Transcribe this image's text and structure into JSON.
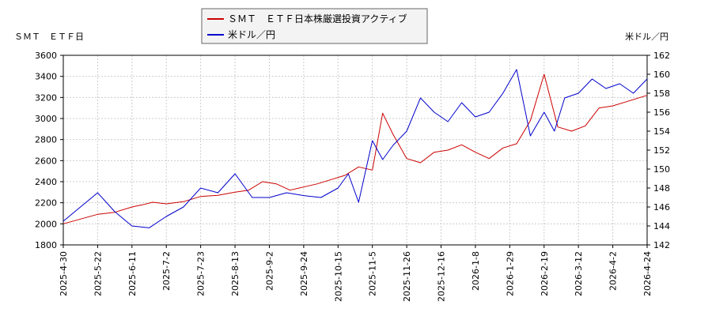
{
  "chart_data": {
    "type": "line",
    "left_axis_unit": "ＳＭＴ　ＥＴＦ日",
    "right_axis_unit": "米ドル／円",
    "y_left": {
      "lim": [
        1800,
        3600
      ],
      "ticks": [
        "1800",
        "2000",
        "2200",
        "2400",
        "2600",
        "2800",
        "3000",
        "3200",
        "3400",
        "3600"
      ]
    },
    "y_right": {
      "lim": [
        142,
        162
      ],
      "ticks": [
        "142",
        "144",
        "146",
        "148",
        "150",
        "152",
        "154",
        "156",
        "158",
        "160",
        "162"
      ]
    },
    "x_ticks": [
      "2025-4-30",
      "2025-5-22",
      "2025-6-11",
      "2025-7-2",
      "2025-7-23",
      "2025-8-13",
      "2025-9-2",
      "2025-9-24",
      "2025-10-15",
      "2025-11-5",
      "2025-11-26",
      "2025-12-16",
      "2026-1-8",
      "2026-1-29",
      "2026-2-19",
      "2026-3-12",
      "2026-4-2",
      "2026-4-24"
    ],
    "grid": true,
    "legend": "top-center",
    "series": [
      {
        "name": "ＳＭＴ　ＥＴＦ日本株厳選投資アクティブ",
        "color": "#cc0000",
        "axis": "left",
        "x": [
          0,
          1.0,
          1.5,
          2.0,
          2.3,
          2.6,
          3.0,
          3.5,
          4.0,
          4.5,
          5.0,
          5.4,
          5.8,
          6.2,
          6.6,
          7.0,
          7.4,
          7.8,
          8.2,
          8.6,
          9.0,
          9.3,
          9.6,
          10.0,
          10.4,
          10.8,
          11.2,
          11.6,
          12.0,
          12.4,
          12.8,
          13.2,
          13.6,
          14.0,
          14.4,
          14.8,
          15.2,
          15.6,
          16.0,
          16.4,
          16.8,
          17.0
        ],
        "values": [
          2000,
          2090,
          2110,
          2160,
          2180,
          2205,
          2190,
          2210,
          2260,
          2270,
          2300,
          2320,
          2400,
          2380,
          2320,
          2350,
          2380,
          2420,
          2460,
          2540,
          2510,
          3050,
          2850,
          2620,
          2580,
          2680,
          2700,
          2750,
          2680,
          2620,
          2720,
          2760,
          2980,
          3420,
          2920,
          2880,
          2930,
          3100,
          3120,
          3160,
          3200,
          3220
        ]
      },
      {
        "name": "米ドル／円",
        "color": "#0000cc",
        "axis": "right",
        "x": [
          0,
          0.5,
          1.0,
          1.5,
          2.0,
          2.5,
          3.0,
          3.5,
          4.0,
          4.5,
          5.0,
          5.5,
          6.0,
          6.5,
          7.0,
          7.5,
          8.0,
          8.3,
          8.6,
          9.0,
          9.3,
          9.6,
          10.0,
          10.4,
          10.8,
          11.2,
          11.6,
          12.0,
          12.4,
          12.8,
          13.2,
          13.6,
          14.0,
          14.3,
          14.6,
          15.0,
          15.4,
          15.8,
          16.2,
          16.6,
          17.0
        ],
        "values": [
          144.5,
          146.0,
          147.5,
          145.5,
          144.0,
          143.8,
          145.0,
          146.0,
          148.0,
          147.5,
          149.5,
          147.0,
          147.0,
          147.5,
          147.2,
          147.0,
          148.0,
          149.5,
          146.5,
          153.0,
          151.0,
          152.5,
          154.0,
          157.5,
          156.0,
          155.0,
          157.0,
          155.5,
          156.0,
          158.0,
          160.5,
          153.5,
          156.0,
          154.0,
          157.5,
          158.0,
          159.5,
          158.5,
          159.0,
          158.0,
          159.5
        ]
      }
    ]
  }
}
